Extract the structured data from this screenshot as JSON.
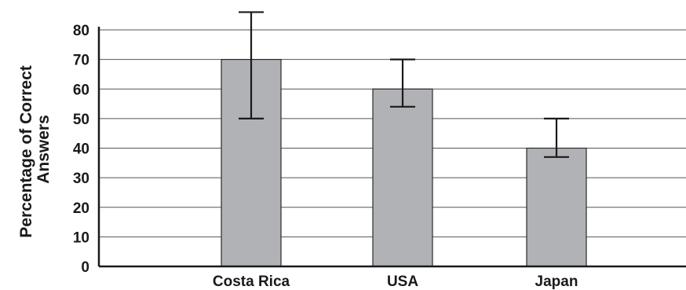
{
  "chart_data": {
    "type": "bar",
    "categories": [
      "Costa Rica",
      "USA",
      "Japan"
    ],
    "values": [
      70,
      60,
      40
    ],
    "error_bars": [
      {
        "low": 50,
        "high": 86
      },
      {
        "low": 54,
        "high": 70
      },
      {
        "low": 37,
        "high": 50
      }
    ],
    "ylabel_lines": [
      "Percentage of Correct",
      "Answers"
    ],
    "xlabel": "",
    "ylim": [
      0,
      80
    ],
    "yticks": [
      0,
      10,
      20,
      30,
      40,
      50,
      60,
      70,
      80
    ],
    "grid": "horizontal",
    "bar_color": "#b1b2b6"
  }
}
